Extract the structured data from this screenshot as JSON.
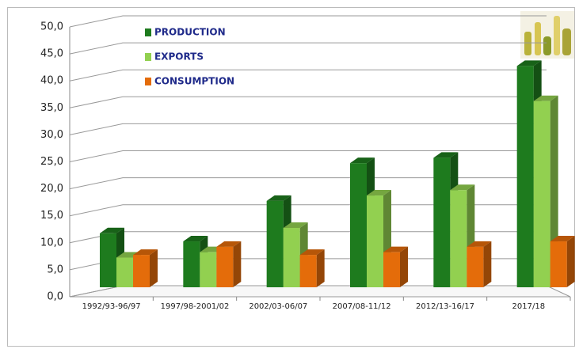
{
  "chart_data": {
    "type": "bar3d",
    "categories": [
      "1992/93-96/97",
      "1997/98-2001/02",
      "2002/03-06/07",
      "2007/08-11/12",
      "2012/13-16/17",
      "2017/18"
    ],
    "series": [
      {
        "name": "PRODUCTION",
        "color": "#1e7b1e",
        "values": [
          10,
          8.5,
          16,
          23,
          24,
          41
        ]
      },
      {
        "name": "EXPORTS",
        "color": "#92d050",
        "values": [
          5.5,
          6.5,
          11,
          17,
          18,
          34.5
        ]
      },
      {
        "name": "CONSUMPTION",
        "color": "#e46c0a",
        "values": [
          6,
          7.5,
          6,
          6.5,
          7.5,
          8.5
        ]
      }
    ],
    "ylim": [
      0,
      50
    ],
    "yticks": [
      {
        "value": 0,
        "label": "0,0"
      },
      {
        "value": 5,
        "label": "5,0"
      },
      {
        "value": 10,
        "label": "10,0"
      },
      {
        "value": 15,
        "label": "15,0"
      },
      {
        "value": 20,
        "label": "20,0"
      },
      {
        "value": 25,
        "label": "25,0"
      },
      {
        "value": 30,
        "label": "30,0"
      },
      {
        "value": 35,
        "label": "35,0"
      },
      {
        "value": 40,
        "label": "40,0"
      },
      {
        "value": 45,
        "label": "45,0"
      },
      {
        "value": 50,
        "label": "50,0"
      }
    ],
    "grid": true,
    "legend": "upper left"
  }
}
